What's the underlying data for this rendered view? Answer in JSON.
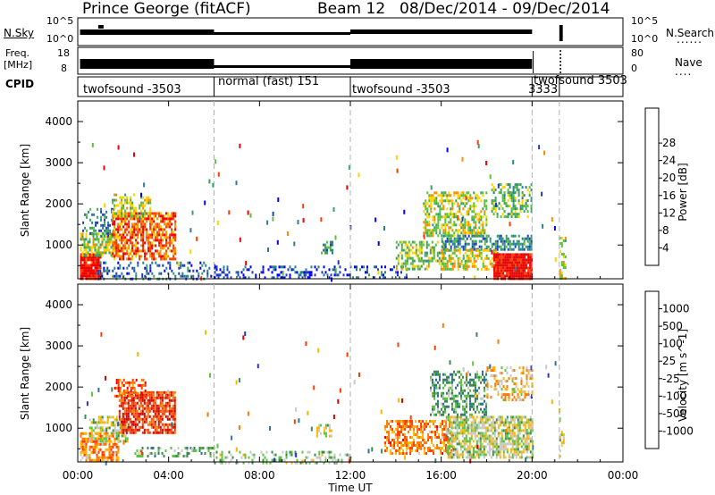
{
  "header": {
    "title": "Prince George (fitACF)",
    "beam": "Beam 12",
    "date_range": "08/Dec/2014 - 09/Dec/2014"
  },
  "summary_panels": {
    "nsky": {
      "label": "N.Sky",
      "ticks": [
        "10^5",
        "10^0"
      ]
    },
    "nsearch": {
      "label": "N.Search",
      "ticks": [
        "10^5",
        "10^0"
      ]
    },
    "freq": {
      "label": "Freq. [MHz]",
      "label_top": "Freq.",
      "label_bottom": "[MHz]",
      "ticks": [
        "18",
        "8"
      ]
    },
    "nave": {
      "label": "Nave",
      "ticks": [
        "80",
        "0"
      ]
    },
    "cpid": {
      "label": "CPID",
      "segments": [
        {
          "start_h": 0,
          "end_h": 6,
          "label": "twofsound -3503"
        },
        {
          "start_h": 6,
          "end_h": 12,
          "label": "normal (fast) 151"
        },
        {
          "start_h": 12,
          "end_h": 20,
          "label": "twofsound -3503"
        },
        {
          "start_h": 20,
          "end_h": 21.2,
          "label": "3333"
        },
        {
          "start_h": 21.2,
          "end_h": 24,
          "label": "twofsound 3503"
        }
      ]
    }
  },
  "x_axis": {
    "label": "Time UT",
    "ticks": [
      "00:00",
      "04:00",
      "08:00",
      "12:00",
      "16:00",
      "20:00",
      "00:00"
    ]
  },
  "chart_data": [
    {
      "type": "heatmap",
      "name": "power",
      "xlabel": "Time UT",
      "ylabel": "Slant Range [km]",
      "xlim": [
        0,
        24
      ],
      "ylim": [
        180,
        4500
      ],
      "yticks": [
        1000,
        2000,
        3000,
        4000
      ],
      "xticks": [
        "00:00",
        "04:00",
        "08:00",
        "12:00",
        "16:00",
        "20:00",
        "00:00"
      ],
      "colorbar": {
        "label": "Power [dB]",
        "ticks": [
          "4",
          "8",
          "12",
          "16",
          "20",
          "24",
          "28"
        ],
        "colors": [
          "#0000ff",
          "#1e3fb4",
          "#2b7f8f",
          "#3c9f64",
          "#5cbf3c",
          "#ffd200",
          "#ff8c00",
          "#ff3c00",
          "#ee0000"
        ]
      },
      "blobs": [
        {
          "t0": 0.1,
          "t1": 1.0,
          "r0": 200,
          "r1": 800,
          "v": 0.95,
          "d": 0.9
        },
        {
          "t0": 0.1,
          "t1": 1.8,
          "r0": 750,
          "r1": 1300,
          "v": 0.55,
          "d": 0.7
        },
        {
          "t0": 0.2,
          "t1": 1.6,
          "r0": 1200,
          "r1": 1900,
          "v": 0.3,
          "d": 0.35
        },
        {
          "t0": 1.5,
          "t1": 4.3,
          "r0": 650,
          "r1": 1800,
          "v": 0.8,
          "d": 0.7
        },
        {
          "t0": 1.5,
          "t1": 3.2,
          "r0": 1700,
          "r1": 2250,
          "v": 0.55,
          "d": 0.5
        },
        {
          "t0": 0.8,
          "t1": 6.0,
          "r0": 180,
          "r1": 600,
          "v": 0.2,
          "d": 0.3
        },
        {
          "t0": 6.0,
          "t1": 12.0,
          "r0": 180,
          "r1": 500,
          "v": 0.15,
          "d": 0.28
        },
        {
          "t0": 10.7,
          "t1": 11.2,
          "r0": 800,
          "r1": 1100,
          "v": 0.35,
          "d": 0.5
        },
        {
          "t0": 12.0,
          "t1": 14.5,
          "r0": 180,
          "r1": 500,
          "v": 0.2,
          "d": 0.25
        },
        {
          "t0": 14.0,
          "t1": 16.2,
          "r0": 400,
          "r1": 1100,
          "v": 0.5,
          "d": 0.5
        },
        {
          "t0": 15.2,
          "t1": 18.0,
          "r0": 1200,
          "r1": 2300,
          "v": 0.55,
          "d": 0.55
        },
        {
          "t0": 16.0,
          "t1": 20.0,
          "r0": 900,
          "r1": 1250,
          "v": 0.3,
          "d": 0.6
        },
        {
          "t0": 16.0,
          "t1": 18.5,
          "r0": 400,
          "r1": 900,
          "v": 0.6,
          "d": 0.55
        },
        {
          "t0": 18.3,
          "t1": 20.0,
          "r0": 200,
          "r1": 800,
          "v": 0.97,
          "d": 0.95
        },
        {
          "t0": 18.2,
          "t1": 20.0,
          "r0": 1700,
          "r1": 2500,
          "v": 0.45,
          "d": 0.45
        },
        {
          "t0": 21.2,
          "t1": 21.45,
          "r0": 200,
          "r1": 1200,
          "v": 0.6,
          "d": 0.4
        }
      ]
    },
    {
      "type": "heatmap",
      "name": "velocity",
      "xlabel": "Time UT",
      "ylabel": "Slant Range [km]",
      "xlim": [
        0,
        24
      ],
      "ylim": [
        180,
        4500
      ],
      "yticks": [
        1000,
        2000,
        3000,
        4000
      ],
      "xticks": [
        "00:00",
        "04:00",
        "08:00",
        "12:00",
        "16:00",
        "20:00",
        "00:00"
      ],
      "colorbar": {
        "label": "Velocity [m s^-1]",
        "ticks": [
          "1000",
          "500",
          "100",
          "25",
          "-25",
          "-100",
          "-500",
          "-1000"
        ],
        "colors": [
          "#2a34c8",
          "#2f6ea0",
          "#3a8a4c",
          "#5cc33c",
          "#c8c8c8",
          "#ffb400",
          "#ff7800",
          "#ff3c00",
          "#e00000"
        ]
      },
      "blobs": [
        {
          "t0": 0.1,
          "t1": 1.8,
          "r0": 200,
          "r1": 900,
          "v": 0.7,
          "d": 0.65
        },
        {
          "t0": 0.5,
          "t1": 2.2,
          "r0": 700,
          "r1": 1300,
          "v": 0.48,
          "d": 0.55
        },
        {
          "t0": 1.8,
          "t1": 4.3,
          "r0": 900,
          "r1": 1900,
          "v": 0.85,
          "d": 0.75
        },
        {
          "t0": 1.6,
          "t1": 3.0,
          "r0": 1800,
          "r1": 2200,
          "v": 0.8,
          "d": 0.5
        },
        {
          "t0": 2.5,
          "t1": 6.0,
          "r0": 300,
          "r1": 550,
          "v": 0.35,
          "d": 0.35
        },
        {
          "t0": 6.0,
          "t1": 12.0,
          "r0": 180,
          "r1": 450,
          "v": 0.4,
          "d": 0.3
        },
        {
          "t0": 10.5,
          "t1": 11.2,
          "r0": 800,
          "r1": 1100,
          "v": 0.48,
          "d": 0.5
        },
        {
          "t0": 13.5,
          "t1": 16.5,
          "r0": 400,
          "r1": 1200,
          "v": 0.72,
          "d": 0.55
        },
        {
          "t0": 15.5,
          "t1": 18.0,
          "r0": 1300,
          "r1": 2400,
          "v": 0.3,
          "d": 0.45
        },
        {
          "t0": 16.2,
          "t1": 20.0,
          "r0": 300,
          "r1": 1300,
          "v": 0.48,
          "d": 0.7
        },
        {
          "t0": 18.0,
          "t1": 20.0,
          "r0": 1700,
          "r1": 2500,
          "v": 0.6,
          "d": 0.4
        },
        {
          "t0": 21.2,
          "t1": 21.4,
          "r0": 200,
          "r1": 1000,
          "v": 0.48,
          "d": 0.35
        }
      ]
    }
  ]
}
